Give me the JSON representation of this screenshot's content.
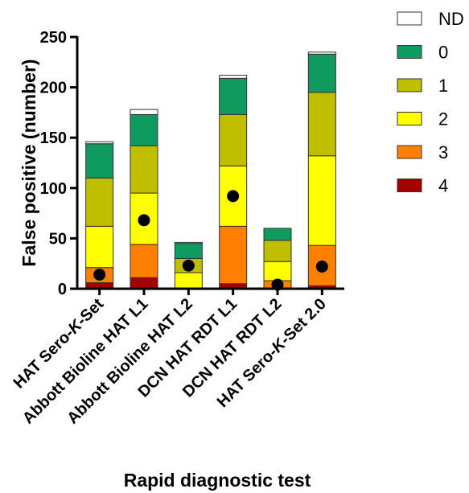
{
  "chart_data": {
    "type": "bar",
    "stacked": true,
    "categories": [
      {
        "parts": [
          {
            "t": "HAT Sero-",
            "i": false
          },
          {
            "t": "K",
            "i": true
          },
          {
            "t": "-Set",
            "i": false
          }
        ]
      },
      {
        "parts": [
          {
            "t": "Abbott Bioline HAT L1",
            "i": false
          }
        ]
      },
      {
        "parts": [
          {
            "t": "Abbott Bioline HAT L2",
            "i": false
          }
        ]
      },
      {
        "parts": [
          {
            "t": "DCN HAT RDT L1",
            "i": false
          }
        ]
      },
      {
        "parts": [
          {
            "t": "DCN HAT RDT L2",
            "i": false
          }
        ]
      },
      {
        "parts": [
          {
            "t": "HAT Sero-",
            "i": false
          },
          {
            "t": "K",
            "i": true
          },
          {
            "t": "-Set 2.0",
            "i": false
          }
        ]
      }
    ],
    "series": [
      {
        "name": "4",
        "color": "#a50000",
        "values": [
          6,
          11,
          0,
          5,
          0,
          3
        ]
      },
      {
        "name": "3",
        "color": "#ff7f00",
        "values": [
          15,
          33,
          0,
          57,
          8,
          40
        ]
      },
      {
        "name": "2",
        "color": "#ffff00",
        "values": [
          41,
          51,
          16,
          60,
          19,
          89
        ]
      },
      {
        "name": "1",
        "color": "#bfbf00",
        "values": [
          48,
          47,
          14,
          51,
          21,
          63
        ]
      },
      {
        "name": "0",
        "color": "#0f9a5f",
        "values": [
          34,
          31,
          15,
          36,
          12,
          38
        ]
      },
      {
        "name": "ND",
        "color": "#ffffff",
        "values": [
          2,
          5,
          1,
          3,
          0,
          2
        ]
      }
    ],
    "dots": {
      "color": "#000000",
      "values": [
        14,
        68,
        23,
        92,
        4,
        22
      ]
    },
    "legend_order": [
      "ND",
      "0",
      "1",
      "2",
      "3",
      "4"
    ],
    "legend_position": "top-right",
    "ylabel": "False positive (number)",
    "xlabel": "Rapid diagnostic test",
    "ylim": [
      0,
      250
    ],
    "yticks": [
      0,
      50,
      100,
      150,
      200,
      250
    ],
    "grid": false
  }
}
